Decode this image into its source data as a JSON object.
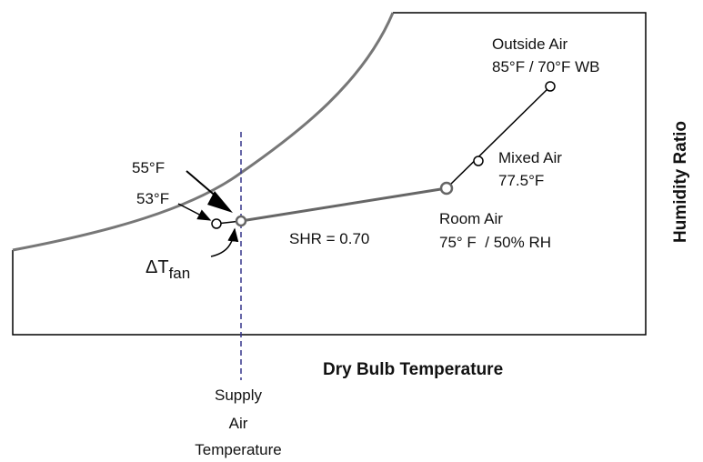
{
  "x_axis_label": "Dry Bulb Temperature",
  "y_axis_label": "Humidity Ratio",
  "points": [
    {
      "name": "Outside Air",
      "condition": "85°F / 70°F WB"
    },
    {
      "name": "Mixed Air",
      "condition": "77.5°F"
    },
    {
      "name": "Room Air",
      "condition": "75° F  / 50% RH"
    }
  ],
  "shr_label": "SHR = 0.70",
  "supply_temp_label": "55°F",
  "coil_temp_label": "53°F",
  "fan_delta": {
    "symbol": "ΔT",
    "subscript": "fan"
  },
  "supply_line_label": [
    "Supply",
    "Air",
    "Temperature"
  ]
}
